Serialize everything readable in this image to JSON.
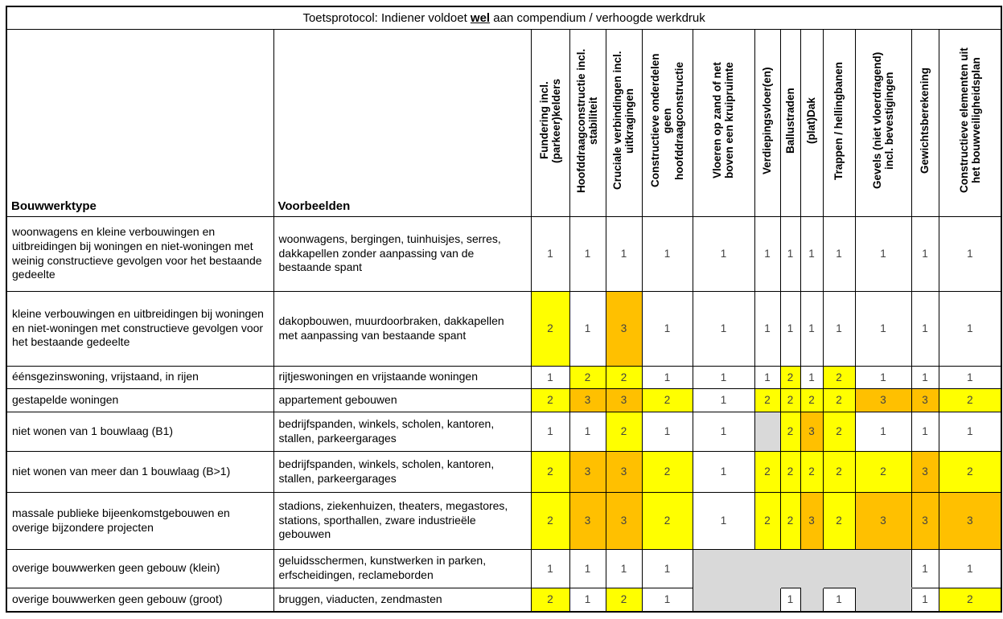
{
  "title": {
    "prefix": "Toetsprotocol: Indiener voldoet ",
    "emphasis": "wel",
    "suffix": " aan compendium / verhoogde werkdruk"
  },
  "palette": {
    "w": "#FFFFFF",
    "y": "#FFFF00",
    "o": "#FFC000",
    "g": "#D9D9D9"
  },
  "columns": {
    "bouwwerktype": "Bouwwerktype",
    "voorbeelden": "Voorbeelden",
    "rotated": [
      "Fundering incl.\n(parkeer)kelders",
      "Hoofddraagconstructie incl.\nstabiliteit",
      "Cruciale verbindingen incl.\nuitkragingen",
      "Constructieve onderdelen\ngeen\nhoofddraagconstructie",
      "Vloeren op zand of net\nboven een kruipruimte",
      "Verdiepingsvloer(en)",
      "Ballustraden",
      "(plat)Dak",
      "Trappen / hellingbanen",
      "Gevels (niet vloerdragend)\nincl. bevestigingen",
      "Gewichtsberekening",
      "Constructieve elementen uit\nhet bouwveiligheidsplan"
    ]
  },
  "rows": [
    {
      "bouwwerktype": "woonwagens en kleine verbouwingen en uitbreidingen bij woningen en niet-woningen met weinig constructieve gevolgen voor het bestaande gedeelte",
      "voorbeelden": "woonwagens, bergingen, tuinhuisjes, serres, dakkapellen zonder aanpassing van de bestaande spant",
      "cells": [
        {
          "v": "1",
          "c": "w"
        },
        {
          "v": "1",
          "c": "w"
        },
        {
          "v": "1",
          "c": "w"
        },
        {
          "v": "1",
          "c": "w"
        },
        {
          "v": "1",
          "c": "w"
        },
        {
          "v": "1",
          "c": "w"
        },
        {
          "v": "1",
          "c": "w"
        },
        {
          "v": "1",
          "c": "w"
        },
        {
          "v": "1",
          "c": "w"
        },
        {
          "v": "1",
          "c": "w"
        },
        {
          "v": "1",
          "c": "w"
        },
        {
          "v": "1",
          "c": "w"
        }
      ]
    },
    {
      "bouwwerktype": "kleine verbouwingen en uitbreidingen bij woningen en niet-woningen met constructieve gevolgen voor het bestaande gedeelte",
      "voorbeelden": "dakopbouwen, muurdoorbraken, dakkapellen met aanpassing van bestaande spant",
      "cells": [
        {
          "v": "2",
          "c": "y"
        },
        {
          "v": "1",
          "c": "w"
        },
        {
          "v": "3",
          "c": "o"
        },
        {
          "v": "1",
          "c": "w"
        },
        {
          "v": "1",
          "c": "w"
        },
        {
          "v": "1",
          "c": "w"
        },
        {
          "v": "1",
          "c": "w"
        },
        {
          "v": "1",
          "c": "w"
        },
        {
          "v": "1",
          "c": "w"
        },
        {
          "v": "1",
          "c": "w"
        },
        {
          "v": "1",
          "c": "w"
        },
        {
          "v": "1",
          "c": "w"
        }
      ]
    },
    {
      "bouwwerktype": "éénsgezinswoning, vrijstaand, in rijen",
      "voorbeelden": "rijtjeswoningen en vrijstaande woningen",
      "cells": [
        {
          "v": "1",
          "c": "w"
        },
        {
          "v": "2",
          "c": "y"
        },
        {
          "v": "2",
          "c": "y"
        },
        {
          "v": "1",
          "c": "w"
        },
        {
          "v": "1",
          "c": "w"
        },
        {
          "v": "1",
          "c": "w"
        },
        {
          "v": "2",
          "c": "y"
        },
        {
          "v": "1",
          "c": "w"
        },
        {
          "v": "2",
          "c": "y"
        },
        {
          "v": "1",
          "c": "w"
        },
        {
          "v": "1",
          "c": "w"
        },
        {
          "v": "1",
          "c": "w"
        }
      ]
    },
    {
      "bouwwerktype": "gestapelde woningen",
      "voorbeelden": "appartement gebouwen",
      "cells": [
        {
          "v": "2",
          "c": "y"
        },
        {
          "v": "3",
          "c": "o"
        },
        {
          "v": "3",
          "c": "o"
        },
        {
          "v": "2",
          "c": "y"
        },
        {
          "v": "1",
          "c": "w"
        },
        {
          "v": "2",
          "c": "y"
        },
        {
          "v": "2",
          "c": "y"
        },
        {
          "v": "2",
          "c": "y"
        },
        {
          "v": "2",
          "c": "y"
        },
        {
          "v": "3",
          "c": "o"
        },
        {
          "v": "3",
          "c": "o"
        },
        {
          "v": "2",
          "c": "y"
        }
      ]
    },
    {
      "bouwwerktype": "niet wonen van 1 bouwlaag (B1)",
      "voorbeelden": "bedrijfspanden, winkels, scholen, kantoren, stallen, parkeergarages",
      "cells": [
        {
          "v": "1",
          "c": "w"
        },
        {
          "v": "1",
          "c": "w"
        },
        {
          "v": "2",
          "c": "y"
        },
        {
          "v": "1",
          "c": "w"
        },
        {
          "v": "1",
          "c": "w"
        },
        {
          "v": "",
          "c": "g"
        },
        {
          "v": "2",
          "c": "y"
        },
        {
          "v": "3",
          "c": "o"
        },
        {
          "v": "2",
          "c": "y"
        },
        {
          "v": "1",
          "c": "w"
        },
        {
          "v": "1",
          "c": "w"
        },
        {
          "v": "1",
          "c": "w"
        }
      ]
    },
    {
      "bouwwerktype": "niet wonen van meer dan 1 bouwlaag (B>1)",
      "voorbeelden": "bedrijfspanden, winkels, scholen, kantoren, stallen, parkeergarages",
      "cells": [
        {
          "v": "2",
          "c": "y"
        },
        {
          "v": "3",
          "c": "o"
        },
        {
          "v": "3",
          "c": "o"
        },
        {
          "v": "2",
          "c": "y"
        },
        {
          "v": "1",
          "c": "w"
        },
        {
          "v": "2",
          "c": "y"
        },
        {
          "v": "2",
          "c": "y"
        },
        {
          "v": "2",
          "c": "y"
        },
        {
          "v": "2",
          "c": "y"
        },
        {
          "v": "2",
          "c": "y"
        },
        {
          "v": "3",
          "c": "o"
        },
        {
          "v": "2",
          "c": "y"
        }
      ]
    },
    {
      "bouwwerktype": "massale publieke bijeenkomstgebouwen en overige bijzondere projecten",
      "voorbeelden": "stadions, ziekenhuizen, theaters, megastores, stations, sporthallen, zware industrieële gebouwen",
      "cells": [
        {
          "v": "2",
          "c": "y"
        },
        {
          "v": "3",
          "c": "o"
        },
        {
          "v": "3",
          "c": "o"
        },
        {
          "v": "2",
          "c": "y"
        },
        {
          "v": "1",
          "c": "w"
        },
        {
          "v": "2",
          "c": "y"
        },
        {
          "v": "2",
          "c": "y"
        },
        {
          "v": "3",
          "c": "o"
        },
        {
          "v": "2",
          "c": "y"
        },
        {
          "v": "3",
          "c": "o"
        },
        {
          "v": "3",
          "c": "o"
        },
        {
          "v": "3",
          "c": "o"
        }
      ]
    },
    {
      "bouwwerktype": "overige bouwwerken geen gebouw (klein)",
      "voorbeelden": "geluidsschermen, kunstwerken in parken, erfscheidingen, reclameborden",
      "cells": [
        {
          "v": "1",
          "c": "w"
        },
        {
          "v": "1",
          "c": "w"
        },
        {
          "v": "1",
          "c": "w"
        },
        {
          "v": "1",
          "c": "w"
        },
        {
          "v": "",
          "c": "g"
        },
        {
          "v": "",
          "c": "g"
        },
        {
          "v": "",
          "c": "g"
        },
        {
          "v": "",
          "c": "g"
        },
        {
          "v": "",
          "c": "g"
        },
        {
          "v": "",
          "c": "g"
        },
        {
          "v": "1",
          "c": "w"
        },
        {
          "v": "1",
          "c": "w"
        }
      ]
    },
    {
      "bouwwerktype": "overige bouwwerken geen gebouw (groot)",
      "voorbeelden": "bruggen, viaducten, zendmasten",
      "cells": [
        {
          "v": "2",
          "c": "y"
        },
        {
          "v": "1",
          "c": "w"
        },
        {
          "v": "2",
          "c": "y"
        },
        {
          "v": "1",
          "c": "w"
        },
        {
          "v": "",
          "c": "g"
        },
        {
          "v": "",
          "c": "g"
        },
        {
          "v": "1",
          "c": "w"
        },
        {
          "v": "",
          "c": "g"
        },
        {
          "v": "1",
          "c": "w"
        },
        {
          "v": "",
          "c": "g"
        },
        {
          "v": "1",
          "c": "w"
        },
        {
          "v": "2",
          "c": "y"
        }
      ]
    }
  ]
}
